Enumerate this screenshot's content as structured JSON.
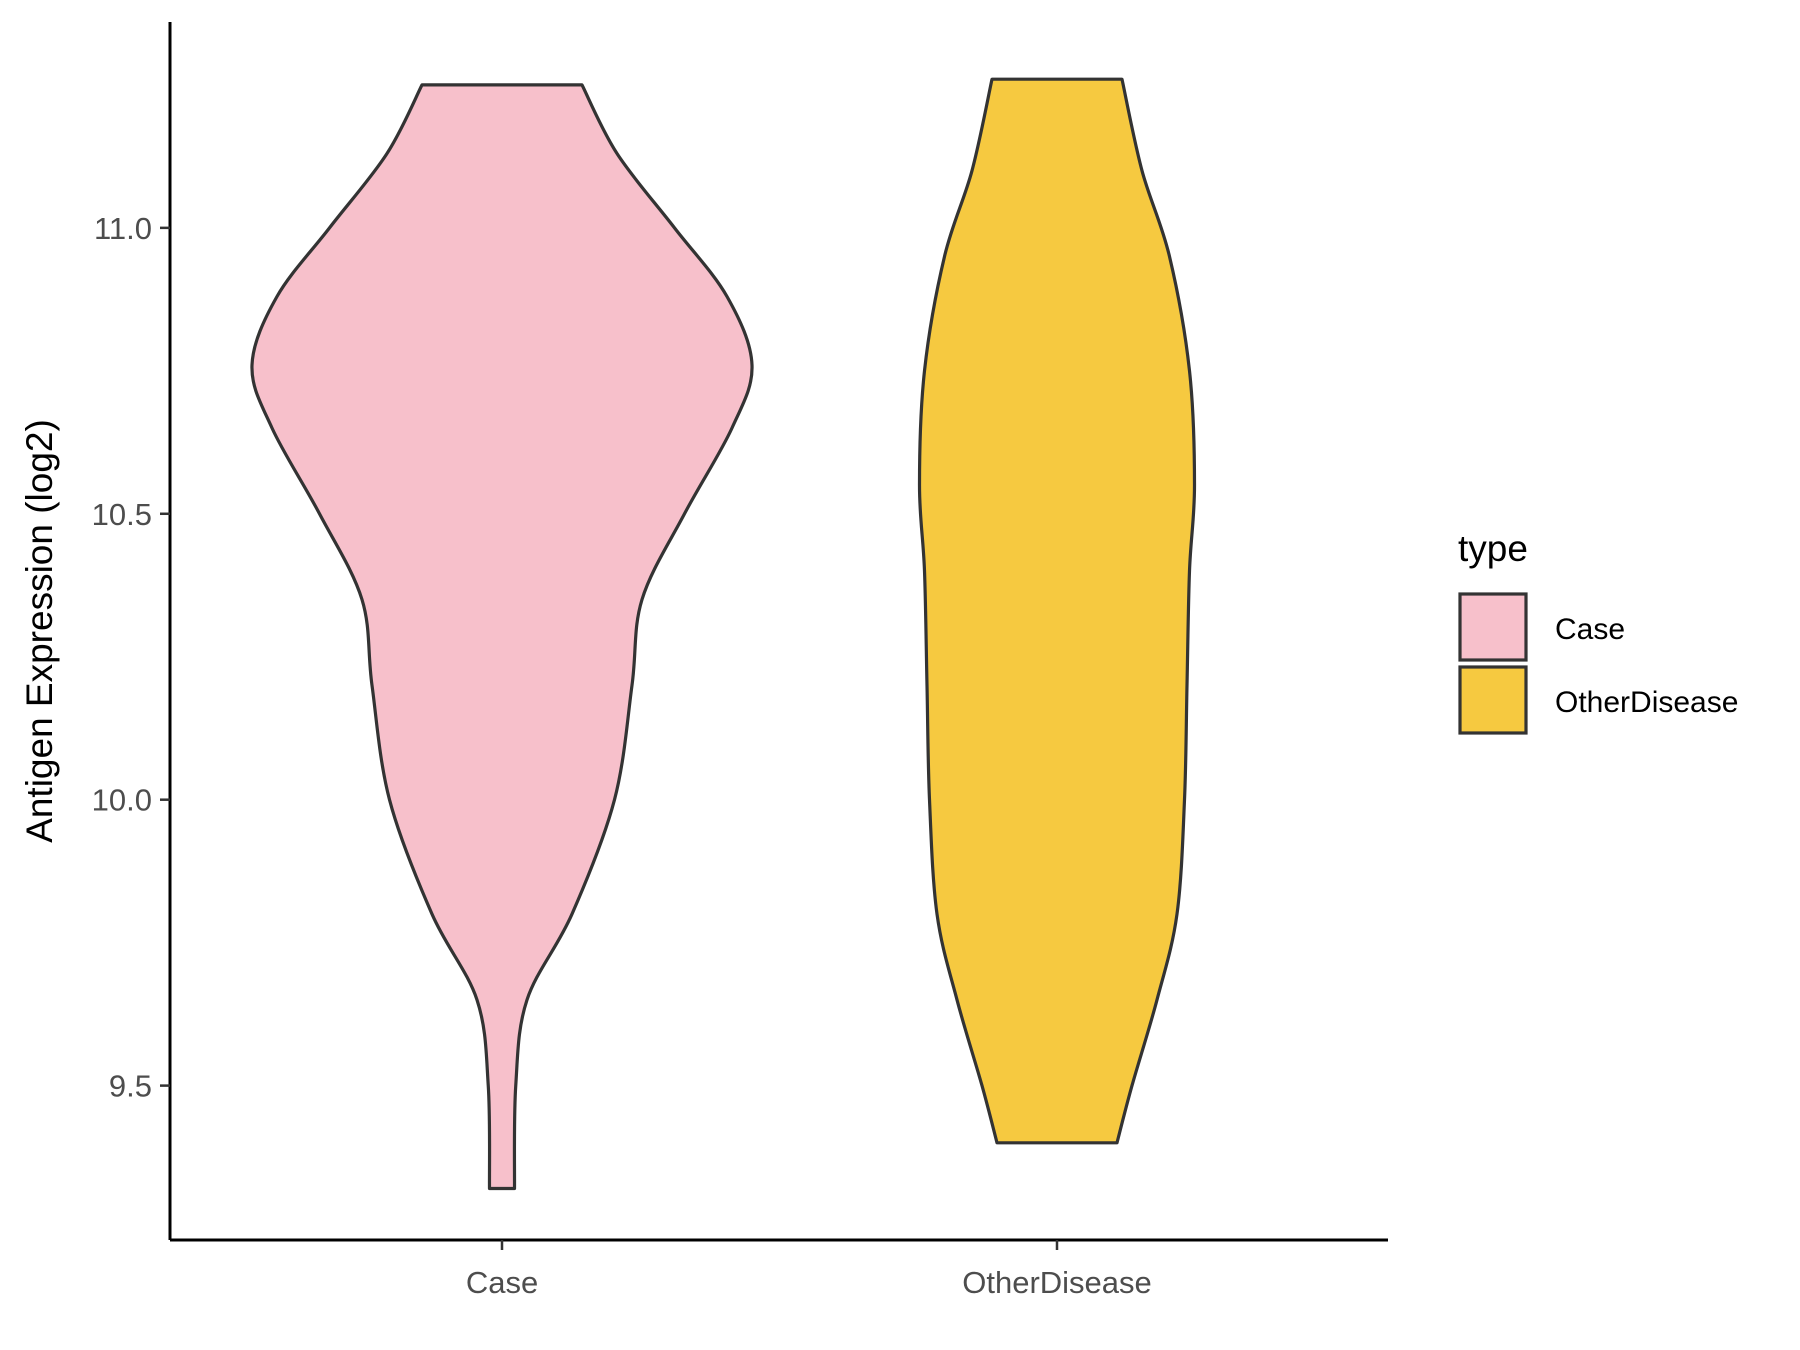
{
  "chart_data": {
    "type": "violin",
    "title": "",
    "xlabel": "",
    "ylabel": "Antigen Expression (log2)",
    "ylim": [
      9.23,
      11.36
    ],
    "yticks": [
      "9.5",
      "10.0",
      "10.5",
      "11.0"
    ],
    "categories": [
      "Case",
      "OtherDisease"
    ],
    "grid": false,
    "legend": {
      "title": "type",
      "position": "right",
      "items": [
        {
          "label": "Case",
          "color": "#F7C0CB"
        },
        {
          "label": "OtherDisease",
          "color": "#F6C940"
        }
      ]
    },
    "series": [
      {
        "category": "Case",
        "color": "#F7C0CB",
        "density_profile": [
          {
            "y": 9.32,
            "w": 0.05
          },
          {
            "y": 9.5,
            "w": 0.055
          },
          {
            "y": 9.65,
            "w": 0.1
          },
          {
            "y": 9.8,
            "w": 0.28
          },
          {
            "y": 10.0,
            "w": 0.45
          },
          {
            "y": 10.2,
            "w": 0.52
          },
          {
            "y": 10.35,
            "w": 0.56
          },
          {
            "y": 10.5,
            "w": 0.73
          },
          {
            "y": 10.65,
            "w": 0.92
          },
          {
            "y": 10.76,
            "w": 1.0
          },
          {
            "y": 10.88,
            "w": 0.9
          },
          {
            "y": 11.0,
            "w": 0.69
          },
          {
            "y": 11.13,
            "w": 0.46
          },
          {
            "y": 11.25,
            "w": 0.32
          }
        ]
      },
      {
        "category": "OtherDisease",
        "color": "#F6C940",
        "density_profile": [
          {
            "y": 9.4,
            "w": 0.24
          },
          {
            "y": 9.5,
            "w": 0.3
          },
          {
            "y": 9.65,
            "w": 0.4
          },
          {
            "y": 9.8,
            "w": 0.48
          },
          {
            "y": 10.0,
            "w": 0.51
          },
          {
            "y": 10.2,
            "w": 0.52
          },
          {
            "y": 10.4,
            "w": 0.53
          },
          {
            "y": 10.55,
            "w": 0.55
          },
          {
            "y": 10.75,
            "w": 0.53
          },
          {
            "y": 10.95,
            "w": 0.45
          },
          {
            "y": 11.1,
            "w": 0.34
          },
          {
            "y": 11.26,
            "w": 0.26
          }
        ]
      }
    ]
  }
}
